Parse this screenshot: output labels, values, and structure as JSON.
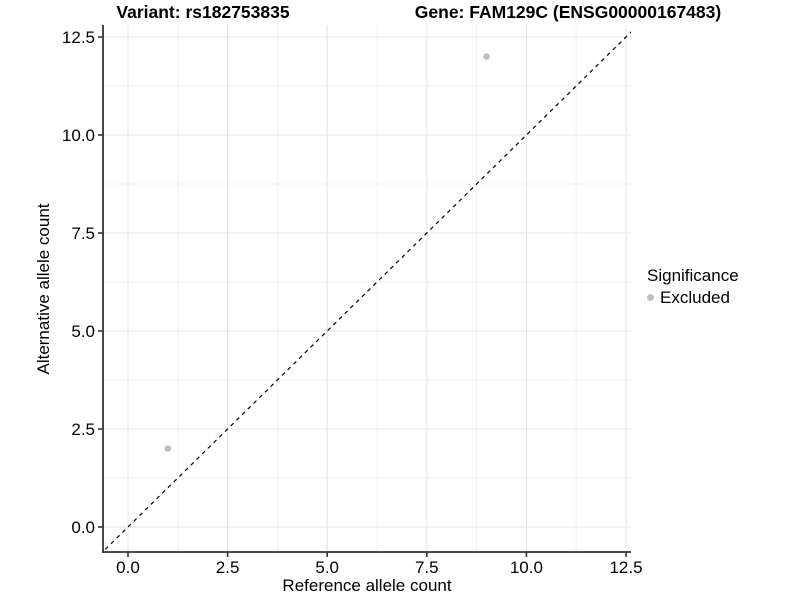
{
  "chart_data": {
    "type": "scatter",
    "titles": {
      "left": "Variant: rs182753835",
      "right": "Gene: FAM129C (ENSG00000167483)"
    },
    "xlabel": "Reference allele count",
    "ylabel": "Alternative allele count",
    "xlim": [
      -0.63,
      12.63
    ],
    "ylim": [
      -0.64,
      12.81
    ],
    "grid": true,
    "xticks": {
      "values": [
        0,
        2.5,
        5,
        7.5,
        10,
        12.5
      ],
      "labels": [
        "0.0",
        "2.5",
        "5.0",
        "7.5",
        "10.0",
        "12.5"
      ]
    },
    "yticks": {
      "values": [
        0,
        2.5,
        5,
        7.5,
        10,
        12.5
      ],
      "labels": [
        "0.0",
        "2.5",
        "5.0",
        "7.5",
        "10.0",
        "12.5"
      ]
    },
    "minor_ticks": [
      1.25,
      3.75,
      6.25,
      8.75,
      11.25
    ],
    "identity_line": {
      "equation": "y = x",
      "style": "dashed",
      "color": "#000000"
    },
    "series": [
      {
        "name": "Excluded",
        "color": "#bebebe",
        "points": [
          {
            "x": 1,
            "y": 2
          },
          {
            "x": 9,
            "y": 12
          }
        ]
      }
    ],
    "legend": {
      "title": "Significance",
      "position": "right",
      "entries": [
        {
          "label": "Excluded",
          "color": "#bebebe",
          "marker": "circle"
        }
      ]
    },
    "colors": {
      "background": "#ffffff",
      "grid_major": "#e6e6e6",
      "grid_minor": "#f0f0f0",
      "axis": "#333333",
      "text": "#000000"
    }
  }
}
